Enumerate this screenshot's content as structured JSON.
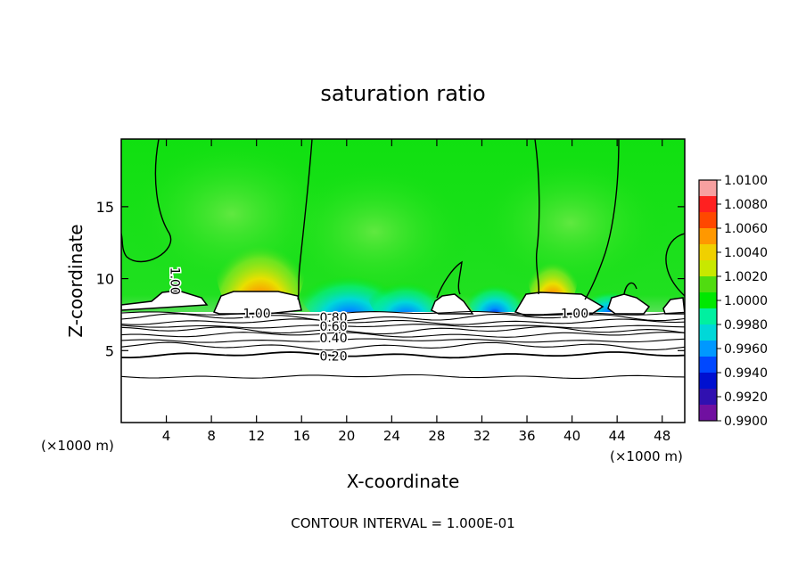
{
  "chart_data": {
    "type": "heatmap",
    "title": "saturation ratio",
    "xlabel": "X-coordinate",
    "ylabel": "Z-coordinate",
    "x_unit_left": "(×1000 m)",
    "x_unit_right": "(×1000 m)",
    "footer": "CONTOUR INTERVAL = 1.000E-01",
    "xlim": [
      0,
      50
    ],
    "ylim": [
      0,
      19.7
    ],
    "x_ticks": [
      4,
      8,
      12,
      16,
      20,
      24,
      28,
      32,
      36,
      40,
      44,
      48
    ],
    "y_ticks": [
      5,
      10,
      15
    ],
    "colorbar": {
      "ticks": [
        "1.0100",
        "1.0080",
        "1.0060",
        "1.0040",
        "1.0020",
        "1.0000",
        "0.9980",
        "0.9960",
        "0.9940",
        "0.9920",
        "0.9900"
      ],
      "colors": [
        "#f7a0a0",
        "#ff2020",
        "#ff4800",
        "#ff9800",
        "#f0d000",
        "#c8e800",
        "#50dc10",
        "#00e800",
        "#00f0a0",
        "#00d8d8",
        "#0098ff",
        "#0048ff",
        "#0010d0",
        "#3010b0",
        "#7010a0"
      ]
    },
    "contour_labels": [
      {
        "text": "1.00",
        "x": 10.8,
        "z": 7.6
      },
      {
        "text": "1.00",
        "x": 39.0,
        "z": 7.6
      },
      {
        "text": "1.00",
        "x": 4.8,
        "z": 10.8
      },
      {
        "text": "0.80",
        "x": 17.6,
        "z": 7.3
      },
      {
        "text": "0.60",
        "x": 17.6,
        "z": 6.7
      },
      {
        "text": "0.40",
        "x": 17.6,
        "z": 5.9
      },
      {
        "text": "0.20",
        "x": 17.6,
        "z": 4.6
      }
    ],
    "contour_levels_z": [
      3.2,
      4.7,
      5.3,
      5.7,
      6.1,
      6.4,
      6.7,
      7.0,
      7.3,
      7.6
    ]
  }
}
